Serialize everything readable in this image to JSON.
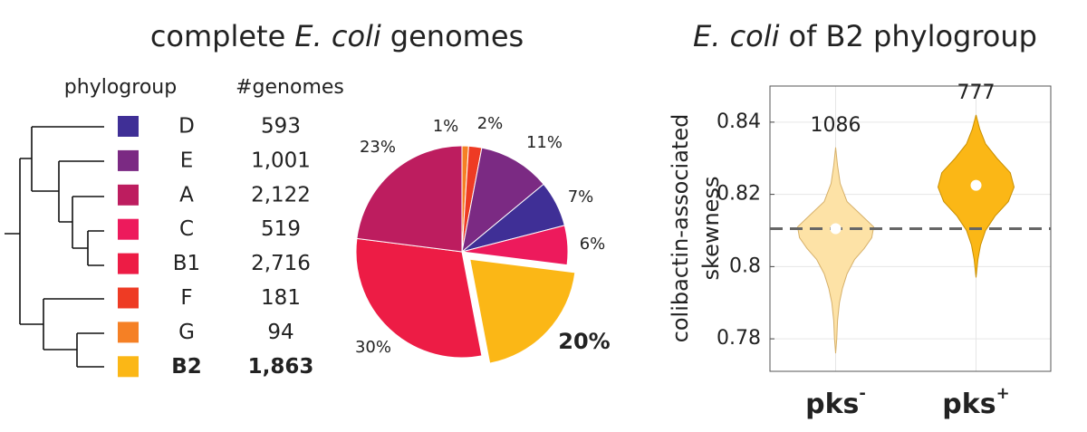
{
  "table": {
    "header": [
      "phylogroup",
      "#genomes"
    ],
    "rows": [
      [
        "D",
        "593"
      ],
      [
        "E",
        "1,001"
      ],
      [
        "A",
        "2,122"
      ],
      [
        "C",
        "519"
      ],
      [
        "B1",
        "2,716"
      ],
      [
        "F",
        "181"
      ],
      [
        "G",
        "94"
      ],
      [
        "B2",
        "1,863"
      ]
    ],
    "colors": [
      "#3f2f96",
      "#7b2a83",
      "#bd1d5f",
      "#ed1a5c",
      "#ed1c45",
      "#ee3b24",
      "#f58025",
      "#fbb716"
    ],
    "bold_row": 7
  },
  "chart_data": [
    {
      "type": "pie",
      "title": {
        "parts": [
          "complete",
          "E. coli",
          "genomes"
        ],
        "italic": [
          false,
          true,
          false
        ]
      },
      "values": [
        1,
        2,
        11,
        7,
        6,
        20,
        30,
        23
      ],
      "value_labels": [
        "1%",
        "2%",
        "11%",
        "7%",
        "6%",
        "20%",
        "30%",
        "23%"
      ],
      "colors": [
        "#f58025",
        "#ee3b24",
        "#7b2a83",
        "#3f2f96",
        "#ed1a5c",
        "#fbb716",
        "#ed1c45",
        "#bd1d5f"
      ],
      "exploded": 5,
      "bold_label": 5
    },
    {
      "type": "violin",
      "title": {
        "parts": [
          "E. coli",
          "of B2 phylogroup"
        ],
        "italic": [
          true,
          false
        ]
      },
      "ylabel": [
        "colibactin-associated",
        "skewness"
      ],
      "categories": [
        "pks",
        "pks"
      ],
      "category_superscripts": [
        "-",
        "+"
      ],
      "ylim": [
        0.771,
        0.85
      ],
      "yticks": [
        0.78,
        0.8,
        0.82,
        0.84
      ],
      "grid": true,
      "reference_line": 0.8105,
      "series": [
        {
          "color": "#fde2a6",
          "edge_color": "#d6b06a",
          "count": 1086,
          "median": 0.8105,
          "kde_y": [
            0.833,
            0.828,
            0.823,
            0.818,
            0.814,
            0.811,
            0.808,
            0.805,
            0.802,
            0.798,
            0.794,
            0.79,
            0.785,
            0.78,
            0.776
          ],
          "density": [
            0,
            0.05,
            0.12,
            0.3,
            0.7,
            1.0,
            0.95,
            0.75,
            0.5,
            0.3,
            0.18,
            0.1,
            0.05,
            0.03,
            0
          ]
        },
        {
          "color": "#fbb716",
          "edge_color": "#c98f00",
          "count": 777,
          "median": 0.8225,
          "kde_y": [
            0.842,
            0.838,
            0.834,
            0.83,
            0.826,
            0.822,
            0.818,
            0.814,
            0.81,
            0.806,
            0.802,
            0.797
          ],
          "density": [
            0,
            0.1,
            0.25,
            0.55,
            0.9,
            1.0,
            0.85,
            0.5,
            0.25,
            0.12,
            0.05,
            0
          ]
        }
      ]
    }
  ]
}
